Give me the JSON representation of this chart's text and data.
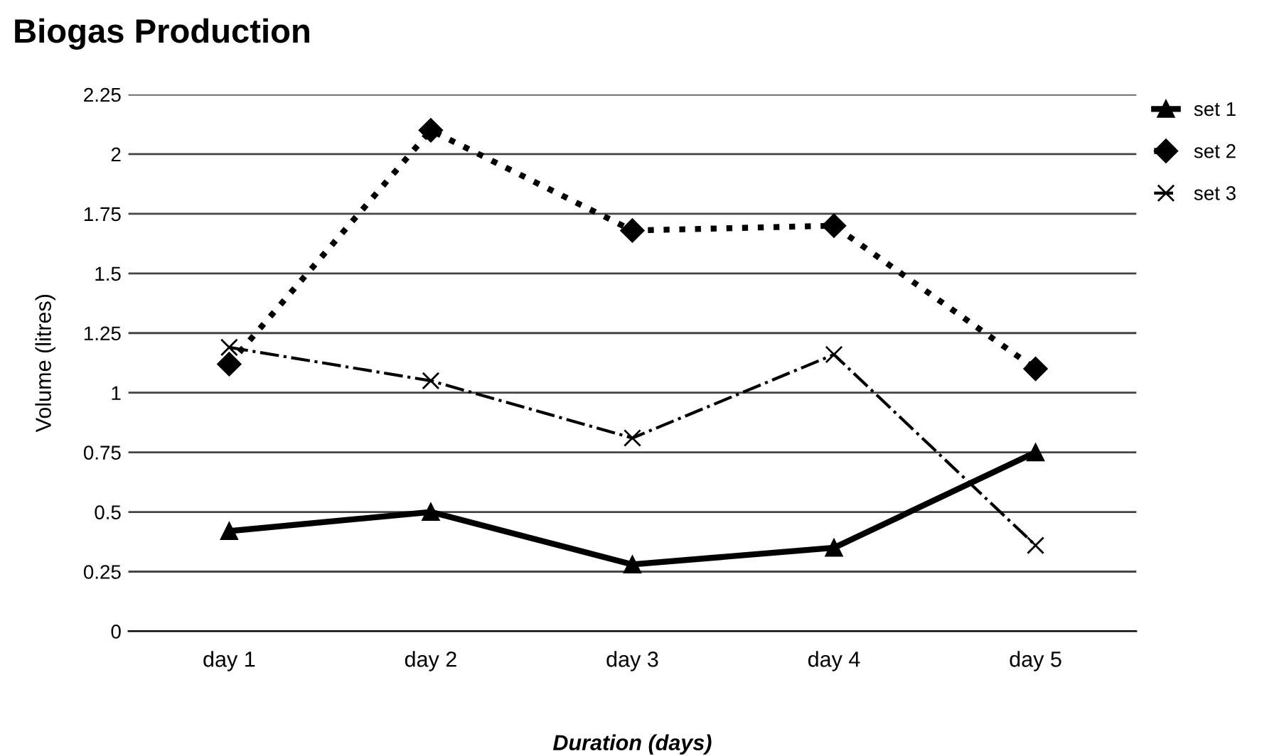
{
  "chart_data": {
    "type": "line",
    "title": "Biogas Production",
    "xlabel": "Duration (days)",
    "ylabel": "Volume (litres)",
    "categories": [
      "day 1",
      "day 2",
      "day 3",
      "day 4",
      "day 5"
    ],
    "series": [
      {
        "name": "set 1",
        "color": "#000000",
        "values": [
          0.42,
          0.5,
          0.28,
          0.35,
          0.75
        ],
        "marker": "triangle",
        "line_style": "solid"
      },
      {
        "name": "set 2",
        "color": "#000000",
        "values": [
          1.12,
          2.1,
          1.68,
          1.7,
          1.1
        ],
        "marker": "diamond",
        "line_style": "dotted"
      },
      {
        "name": "set 3",
        "color": "#000000",
        "values": [
          1.19,
          1.05,
          0.81,
          1.16,
          0.36
        ],
        "marker": "cross",
        "line_style": "dashdot"
      }
    ],
    "ylim": [
      0,
      2.25
    ],
    "yticks": [
      0,
      0.25,
      0.5,
      0.75,
      1,
      1.25,
      1.5,
      1.75,
      2,
      2.25
    ],
    "grid": "y",
    "legend": "top right"
  }
}
